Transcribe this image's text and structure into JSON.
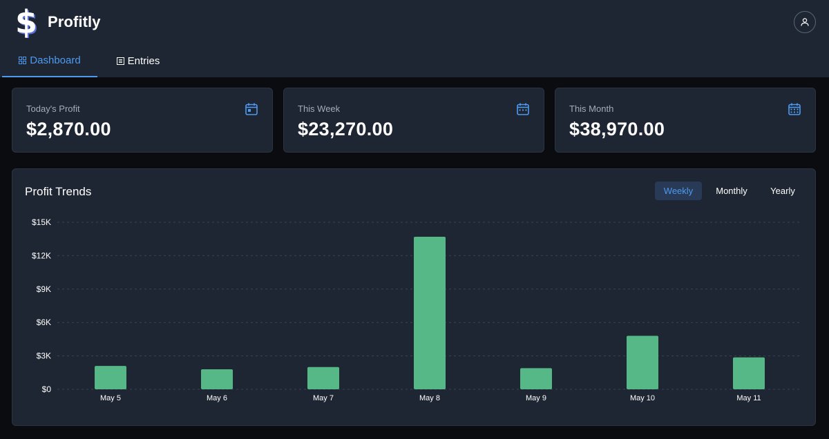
{
  "app": {
    "title": "Profitly"
  },
  "nav": {
    "tabs": [
      {
        "label": "Dashboard",
        "icon": "dashboard-grid-icon",
        "active": true
      },
      {
        "label": "Entries",
        "icon": "list-icon",
        "active": false
      }
    ]
  },
  "header": {
    "account_icon": "user-icon"
  },
  "stats": [
    {
      "label": "Today's Profit",
      "value": "$2,870.00",
      "icon": "calendar-day-icon"
    },
    {
      "label": "This Week",
      "value": "$23,270.00",
      "icon": "calendar-week-icon"
    },
    {
      "label": "This Month",
      "value": "$38,970.00",
      "icon": "calendar-month-icon"
    }
  ],
  "chart": {
    "title": "Profit Trends",
    "periods": [
      "Weekly",
      "Monthly",
      "Yearly"
    ],
    "active_period": "Weekly"
  },
  "colors": {
    "accent": "#4d9bf0",
    "bar": "#55b886",
    "panel": "#1f2633",
    "background": "#0b0c0f"
  },
  "chart_data": {
    "type": "bar",
    "title": "",
    "xlabel": "",
    "ylabel": "",
    "categories": [
      "May 5",
      "May 6",
      "May 7",
      "May 8",
      "May 9",
      "May 10",
      "May 11"
    ],
    "values": [
      2100,
      1800,
      2000,
      13700,
      1900,
      4800,
      2870
    ],
    "ylim": [
      0,
      15000
    ],
    "yticks": [
      0,
      3000,
      6000,
      9000,
      12000,
      15000
    ],
    "ytick_labels": [
      "$0",
      "$3K",
      "$6K",
      "$9K",
      "$12K",
      "$15K"
    ],
    "grid": true,
    "legend": "none"
  }
}
